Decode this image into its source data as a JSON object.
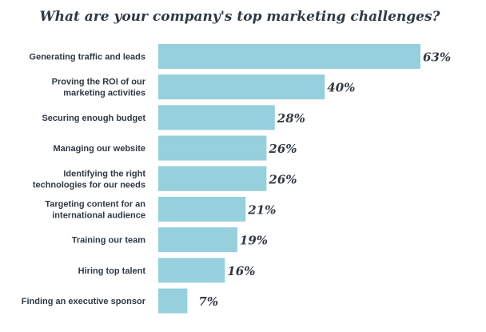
{
  "chart_data": {
    "type": "bar",
    "orientation": "horizontal",
    "title": "What are your company's top marketing challenges?",
    "categories": [
      "Generating traffic and leads",
      "Proving the ROI of our marketing activities",
      "Securing enough budget",
      "Managing our website",
      "Identifying the right technologies for our needs",
      "Targeting content for an international audience",
      "Training our team",
      "Hiring top talent",
      "Finding an executive sponsor"
    ],
    "category_lines": [
      [
        "Generating traffic and leads"
      ],
      [
        "Proving the ROI of our",
        "marketing activities"
      ],
      [
        "Securing enough budget"
      ],
      [
        "Managing our website"
      ],
      [
        "Identifying the right",
        "technologies for our needs"
      ],
      [
        "Targeting content for an",
        "international audience"
      ],
      [
        "Training our team"
      ],
      [
        "Hiring top talent"
      ],
      [
        "Finding an executive sponsor"
      ]
    ],
    "values": [
      63,
      40,
      28,
      26,
      26,
      21,
      19,
      16,
      7
    ],
    "value_labels": [
      "63%",
      "40%",
      "28%",
      "26%",
      "26%",
      "21%",
      "19%",
      "16%",
      "7%"
    ],
    "xlim": [
      0,
      63
    ],
    "grid": false,
    "legend": "none",
    "bar_color": "#96d0dc"
  }
}
